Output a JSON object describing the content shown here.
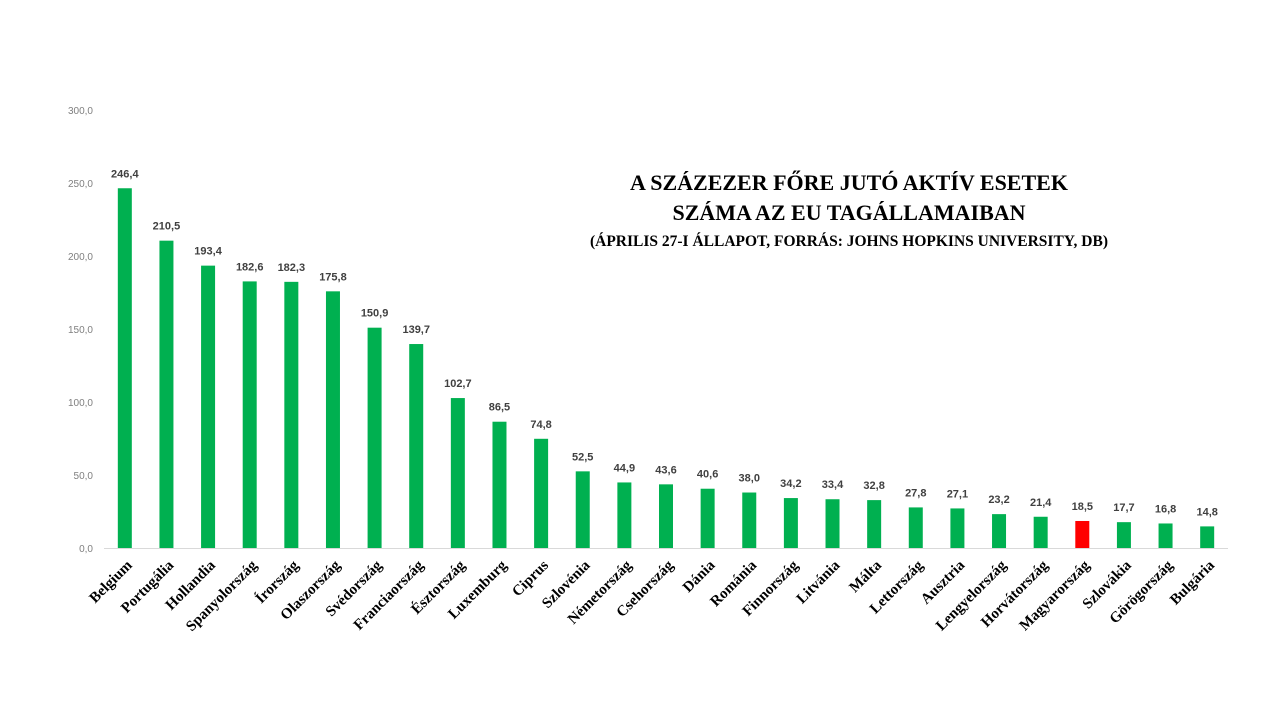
{
  "chart_data": {
    "type": "bar",
    "title": "A SZÁZEZER FŐRE JUTÓ AKTÍV ESETEK",
    "title_line2": "SZÁMA AZ EU TAGÁLLAMAIBAN",
    "subtitle": "(ÁPRILIS 27-I ÁLLAPOT, FORRÁS: JOHNS HOPKINS UNIVERSITY, DB)",
    "xlabel": "",
    "ylabel": "",
    "ylim": [
      0,
      300
    ],
    "yticks": [
      0,
      50,
      100,
      150,
      200,
      250,
      300
    ],
    "ytick_labels": [
      "0,0",
      "50,0",
      "100,0",
      "150,0",
      "200,0",
      "250,0",
      "300,0"
    ],
    "grid": false,
    "legend": "none",
    "categories": [
      "Belgium",
      "Portugália",
      "Hollandia",
      "Spanyolország",
      "Írország",
      "Olaszország",
      "Svédország",
      "Franciaország",
      "Észtország",
      "Luxemburg",
      "Ciprus",
      "Szlovénia",
      "Németország",
      "Csehország",
      "Dánia",
      "Románia",
      "Finnország",
      "Litvánia",
      "Málta",
      "Lettország",
      "Ausztria",
      "Lengyelország",
      "Horvátország",
      "Magyarország",
      "Szlovákia",
      "Görögország",
      "Bulgária"
    ],
    "values": [
      246.4,
      210.5,
      193.4,
      182.6,
      182.3,
      175.8,
      150.9,
      139.7,
      102.7,
      86.5,
      74.8,
      52.5,
      44.9,
      43.6,
      40.6,
      38.0,
      34.2,
      33.4,
      32.8,
      27.8,
      27.1,
      23.2,
      21.4,
      18.5,
      17.7,
      16.8,
      14.8
    ],
    "value_labels": [
      "246,4",
      "210,5",
      "193,4",
      "182,6",
      "182,3",
      "175,8",
      "150,9",
      "139,7",
      "102,7",
      "86,5",
      "74,8",
      "52,5",
      "44,9",
      "43,6",
      "40,6",
      "38,0",
      "34,2",
      "33,4",
      "32,8",
      "27,8",
      "27,1",
      "23,2",
      "21,4",
      "18,5",
      "17,7",
      "16,8",
      "14,8"
    ],
    "highlight_category": "Magyarország",
    "colors": {
      "bar": "#00b050",
      "highlight": "#ff0000",
      "axis": "#d9d9d9"
    }
  }
}
